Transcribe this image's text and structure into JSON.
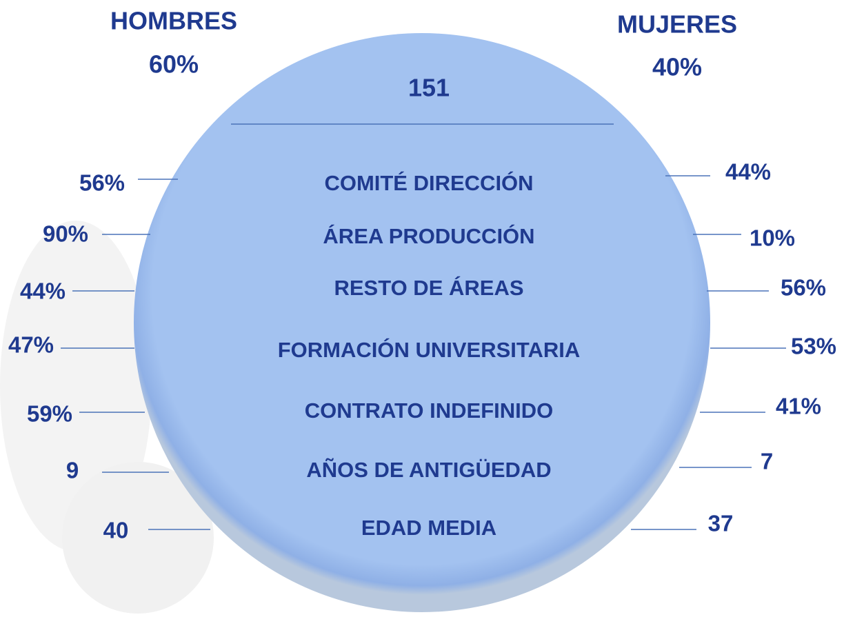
{
  "header": {
    "left": {
      "title": "HOMBRES",
      "value": "60%"
    },
    "right": {
      "title": "MUJERES",
      "value": "40%"
    },
    "total": "151"
  },
  "rows": [
    {
      "label": "COMITÉ DIRECCIÓN",
      "left": "56%",
      "right": "44%"
    },
    {
      "label": "ÁREA PRODUCCIÓN",
      "left": "90%",
      "right": "10%"
    },
    {
      "label": "RESTO DE ÁREAS",
      "left": "44%",
      "right": "56%"
    },
    {
      "label": "FORMACIÓN UNIVERSITARIA",
      "left": "47%",
      "right": "53%"
    },
    {
      "label": "CONTRATO INDEFINIDO",
      "left": "59%",
      "right": "41%"
    },
    {
      "label": "AÑOS DE ANTIGÜEDAD",
      "left": "9",
      "right": "7"
    },
    {
      "label": "EDAD MEDIA",
      "left": "40",
      "right": "37"
    }
  ]
}
